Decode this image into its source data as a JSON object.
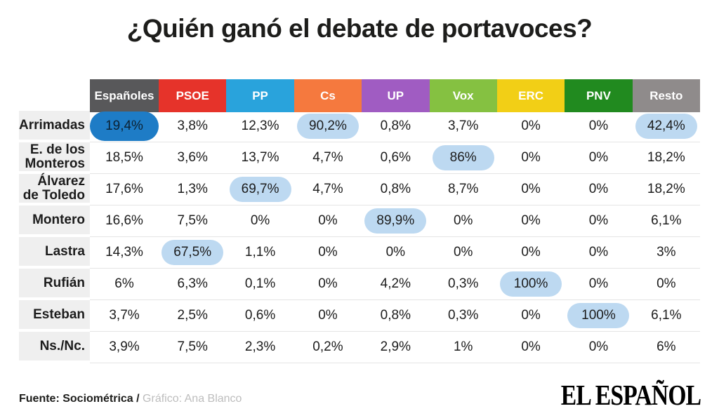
{
  "title": "¿Quién ganó el debate de portavoces?",
  "footer": {
    "source": "Fuente: Sociométrica /",
    "credit": " Gráfico: Ana Blanco",
    "brand": "EL ESPAÑOL"
  },
  "colors": {
    "title_text": "#1d1d1b",
    "label_bg": "#efefef",
    "row_divider": "#e4e4e4",
    "pill_light": "#bdd9f1",
    "pill_dark": "#1e7cc6",
    "pill_dark_text": "#0c2233",
    "credit_text": "#bdbdbd"
  },
  "chart_data": {
    "type": "table",
    "title": "¿Quién ganó el debate de portavoces?",
    "columns": [
      "Españoles",
      "PSOE",
      "PP",
      "Cs",
      "UP",
      "Vox",
      "ERC",
      "PNV",
      "Resto"
    ],
    "column_colors": [
      "#58585a",
      "#e6332a",
      "#29a3dc",
      "#f5793e",
      "#a05cc2",
      "#85c141",
      "#f2cf16",
      "#218a1f",
      "#8f8b8b"
    ],
    "rows": [
      {
        "label": "Arrimadas",
        "values": [
          "19,4%",
          "3,8%",
          "12,3%",
          "90,2%",
          "0,8%",
          "3,7%",
          "0%",
          "0%",
          "42,4%"
        ],
        "highlights": {
          "0": "dark",
          "3": "light",
          "8": "light"
        }
      },
      {
        "label": "E. de los Monteros",
        "values": [
          "18,5%",
          "3,6%",
          "13,7%",
          "4,7%",
          "0,6%",
          "86%",
          "0%",
          "0%",
          "18,2%"
        ],
        "highlights": {
          "5": "light"
        }
      },
      {
        "label": "Álvarez de Toledo",
        "values": [
          "17,6%",
          "1,3%",
          "69,7%",
          "4,7%",
          "0,8%",
          "8,7%",
          "0%",
          "0%",
          "18,2%"
        ],
        "highlights": {
          "2": "light"
        }
      },
      {
        "label": "Montero",
        "values": [
          "16,6%",
          "7,5%",
          "0%",
          "0%",
          "89,9%",
          "0%",
          "0%",
          "0%",
          "6,1%"
        ],
        "highlights": {
          "4": "light"
        }
      },
      {
        "label": "Lastra",
        "values": [
          "14,3%",
          "67,5%",
          "1,1%",
          "0%",
          "0%",
          "0%",
          "0%",
          "0%",
          "3%"
        ],
        "highlights": {
          "1": "light"
        }
      },
      {
        "label": "Rufián",
        "values": [
          "6%",
          "6,3%",
          "0,1%",
          "0%",
          "4,2%",
          "0,3%",
          "100%",
          "0%",
          "0%"
        ],
        "highlights": {
          "6": "light"
        }
      },
      {
        "label": "Esteban",
        "values": [
          "3,7%",
          "2,5%",
          "0,6%",
          "0%",
          "0,8%",
          "0,3%",
          "0%",
          "100%",
          "6,1%"
        ],
        "highlights": {
          "7": "light"
        }
      },
      {
        "label": "Ns./Nc.",
        "values": [
          "3,9%",
          "7,5%",
          "2,3%",
          "0,2%",
          "2,9%",
          "1%",
          "0%",
          "0%",
          "6%"
        ],
        "highlights": {}
      }
    ]
  }
}
